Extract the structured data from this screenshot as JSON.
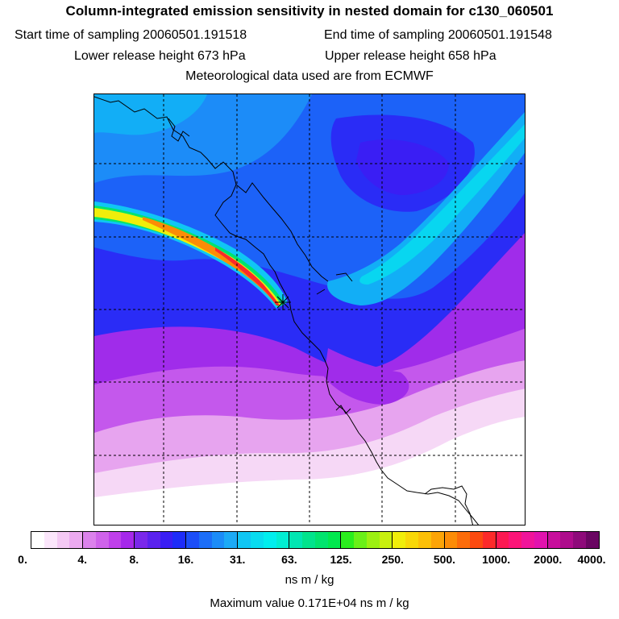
{
  "title": "Column-integrated emission sensitivity in nested domain for c130_060501",
  "sampling": {
    "start": "Start time of sampling 20060501.191518",
    "end": "End time of sampling 20060501.191548"
  },
  "release": {
    "lower": "Lower release height  673 hPa",
    "upper": "Upper release height  658 hPa"
  },
  "met_source": "Meteorological data used are from ECMWF",
  "colorbar": {
    "tick_labels": [
      "0.",
      "4.",
      "8.",
      "16.",
      "31.",
      "63.",
      "125.",
      "250.",
      "500.",
      "1000.",
      "2000.",
      "4000."
    ],
    "colors": [
      "#ffffff",
      "#fbe6fb",
      "#f4c9f4",
      "#ecaaf0",
      "#dc82ec",
      "#cf63ea",
      "#c040ea",
      "#a628ea",
      "#7a28ea",
      "#5a22ee",
      "#3a1ef4",
      "#1e2cf8",
      "#1c4ef8",
      "#1c6ef8",
      "#1c8cf8",
      "#1caaf6",
      "#10c6f4",
      "#08dcf0",
      "#00eeee",
      "#00eed2",
      "#00e6b2",
      "#00e48c",
      "#00e46e",
      "#00e84e",
      "#2aee1e",
      "#6af018",
      "#9cf012",
      "#c8f00e",
      "#f0ee0a",
      "#f8d808",
      "#fcc008",
      "#fca406",
      "#fc8c06",
      "#fc6c0a",
      "#fc4a10",
      "#fc2a2a",
      "#fc1852",
      "#fc1478",
      "#f0149a",
      "#e212ae",
      "#c80e9c",
      "#ae0c8c",
      "#8e0a7a",
      "#6a0662"
    ],
    "major_every": 4
  },
  "units": "ns m / kg",
  "max_value": "Maximum value  0.171E+04 ns m / kg",
  "map": {
    "palette": {
      "white": "#ffffff",
      "pale_pink": "#f6d8f6",
      "pink": "#e7a4ef",
      "violet": "#c458ec",
      "purple": "#a02cea",
      "indigo": "#6a22ee",
      "blue": "#2a2cf6",
      "mid_blue": "#1c62f8",
      "sky_blue": "#1c8cf8",
      "light_blue": "#12aef6",
      "cyan": "#08d6f0",
      "green": "#00e46e",
      "yellow": "#f0ee0a",
      "orange": "#fc8c06",
      "red": "#fc2a2a"
    },
    "release_marker": "release-point"
  }
}
